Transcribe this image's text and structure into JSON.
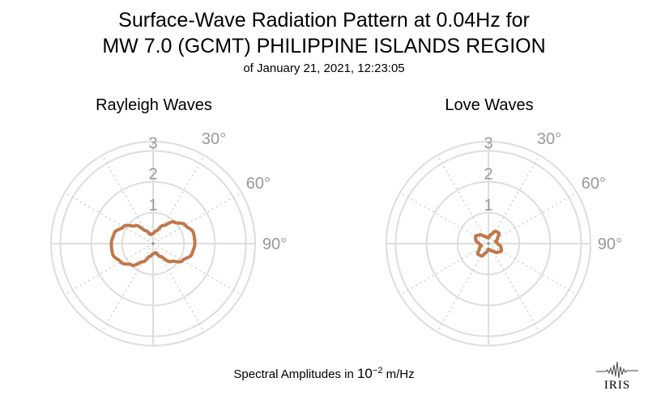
{
  "title": {
    "line1": "Surface-Wave Radiation Pattern at 0.04Hz for",
    "line2": "MW 7.0 (GCMT) PHILIPPINE ISLANDS REGION",
    "line3": "of January 21, 2021, 12:23:05"
  },
  "footer": {
    "prefix": "Spectral Amplitudes in ",
    "base": "10",
    "exponent": "−2",
    "suffix": " m/Hz"
  },
  "logo": {
    "text": "IRIS",
    "icon": "seismogram-icon"
  },
  "colors": {
    "curve": "#c0784a",
    "grid": "#dddddd",
    "grid_dot": "#cccccc",
    "tick_label": "#999999"
  },
  "chart_data": [
    {
      "type": "polar",
      "title": "Rayleigh Waves",
      "radial_ticks": [
        1,
        2,
        3
      ],
      "angular_ticks": [
        "30°",
        "60°",
        "90°"
      ],
      "rmax": 3.3,
      "series": [
        {
          "azimuth_deg": [
            0,
            15,
            30,
            45,
            60,
            75,
            90,
            105,
            120,
            135,
            150,
            165,
            180,
            195,
            210,
            225,
            240,
            255,
            270,
            285,
            300,
            315,
            330,
            345
          ],
          "amplitude": [
            0.33,
            0.43,
            0.68,
            0.98,
            1.2,
            1.35,
            1.35,
            1.3,
            1.1,
            0.82,
            0.48,
            0.3,
            0.33,
            0.43,
            0.68,
            0.98,
            1.2,
            1.35,
            1.35,
            1.3,
            1.1,
            0.82,
            0.48,
            0.3
          ]
        }
      ]
    },
    {
      "type": "polar",
      "title": "Love Waves",
      "radial_ticks": [
        1,
        2,
        3
      ],
      "angular_ticks": [
        "30°",
        "60°",
        "90°"
      ],
      "rmax": 3.3,
      "series": [
        {
          "azimuth_deg": [
            0,
            15,
            30,
            45,
            60,
            75,
            90,
            105,
            120,
            135,
            150,
            165,
            180,
            195,
            210,
            225,
            240,
            255,
            270,
            285,
            300,
            315,
            330,
            345
          ],
          "amplitude": [
            0.18,
            0.3,
            0.46,
            0.48,
            0.34,
            0.24,
            0.3,
            0.42,
            0.48,
            0.4,
            0.28,
            0.22,
            0.18,
            0.3,
            0.46,
            0.48,
            0.34,
            0.24,
            0.3,
            0.42,
            0.48,
            0.4,
            0.28,
            0.22
          ]
        }
      ]
    }
  ]
}
